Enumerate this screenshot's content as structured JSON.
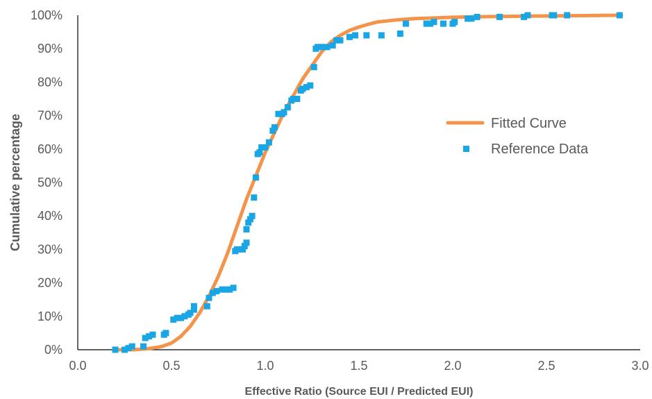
{
  "chart_data": {
    "type": "scatter",
    "xlabel": "Effective Ratio (Source EUI / Predicted EUI)",
    "ylabel": "Cumulative  percentage",
    "xlim": [
      0.0,
      3.0
    ],
    "ylim": [
      0,
      100
    ],
    "x_ticks": [
      "0.0",
      "0.5",
      "1.0",
      "1.5",
      "2.0",
      "2.5",
      "3.0"
    ],
    "y_ticks": [
      "0%",
      "10%",
      "20%",
      "30%",
      "40%",
      "50%",
      "60%",
      "70%",
      "80%",
      "90%",
      "100%"
    ],
    "grid": false,
    "legend_position": "right",
    "colors": {
      "fitted": "#F4934A",
      "reference": "#1AA6E4",
      "text": "#595959",
      "axis": "#000000"
    },
    "series": [
      {
        "name": "Fitted Curve",
        "kind": "line",
        "x": [
          0.2,
          0.3,
          0.35,
          0.4,
          0.45,
          0.5,
          0.55,
          0.6,
          0.65,
          0.7,
          0.75,
          0.8,
          0.85,
          0.9,
          0.95,
          1.0,
          1.05,
          1.1,
          1.15,
          1.2,
          1.25,
          1.3,
          1.35,
          1.4,
          1.45,
          1.5,
          1.55,
          1.6,
          1.7,
          1.8,
          2.0,
          2.2,
          2.5,
          2.9
        ],
        "y": [
          0,
          0,
          0.2,
          0.5,
          1,
          2,
          4,
          7,
          11,
          16,
          22,
          29,
          37,
          45,
          52,
          59,
          65,
          71,
          76,
          81,
          85,
          89,
          92,
          94,
          95.5,
          96.5,
          97.3,
          98,
          98.6,
          99,
          99.4,
          99.6,
          99.8,
          100
        ]
      },
      {
        "name": "Reference Data",
        "kind": "scatter",
        "x": [
          0.2,
          0.25,
          0.27,
          0.29,
          0.35,
          0.36,
          0.38,
          0.4,
          0.46,
          0.47,
          0.51,
          0.53,
          0.55,
          0.57,
          0.59,
          0.6,
          0.62,
          0.62,
          0.69,
          0.7,
          0.72,
          0.74,
          0.77,
          0.79,
          0.81,
          0.83,
          0.84,
          0.85,
          0.88,
          0.89,
          0.9,
          0.9,
          0.91,
          0.92,
          0.93,
          0.94,
          0.95,
          0.96,
          0.97,
          0.98,
          1.0,
          1.02,
          1.04,
          1.05,
          1.07,
          1.09,
          1.1,
          1.12,
          1.14,
          1.15,
          1.17,
          1.19,
          1.2,
          1.22,
          1.24,
          1.26,
          1.27,
          1.28,
          1.3,
          1.33,
          1.36,
          1.38,
          1.4,
          1.45,
          1.48,
          1.54,
          1.62,
          1.72,
          1.75,
          1.86,
          1.88,
          1.9,
          1.95,
          2.0,
          2.01,
          2.08,
          2.1,
          2.13,
          2.25,
          2.38,
          2.4,
          2.53,
          2.54,
          2.61,
          2.89
        ],
        "y": [
          0,
          0,
          0.5,
          1,
          1,
          3.5,
          4,
          4.5,
          4.5,
          5,
          9,
          9.5,
          9.5,
          10,
          10.5,
          11,
          12,
          13,
          13,
          15.5,
          17,
          17.5,
          18,
          18,
          18,
          18.5,
          29.5,
          30,
          30,
          31,
          32,
          36,
          38,
          39,
          40,
          45.5,
          51.5,
          58.5,
          59,
          60.5,
          60.5,
          62,
          65.5,
          66.5,
          70.5,
          70.5,
          71,
          72.5,
          74.5,
          75,
          75,
          77.5,
          78,
          78.5,
          79,
          84.5,
          90,
          90.5,
          90.5,
          90.5,
          91,
          92.5,
          92.5,
          93.5,
          94,
          94,
          94,
          94.5,
          97.5,
          97.5,
          97.5,
          98,
          97.5,
          97.5,
          98,
          99,
          99,
          99.5,
          99.5,
          99.5,
          100,
          100,
          100,
          100,
          100
        ]
      }
    ]
  }
}
